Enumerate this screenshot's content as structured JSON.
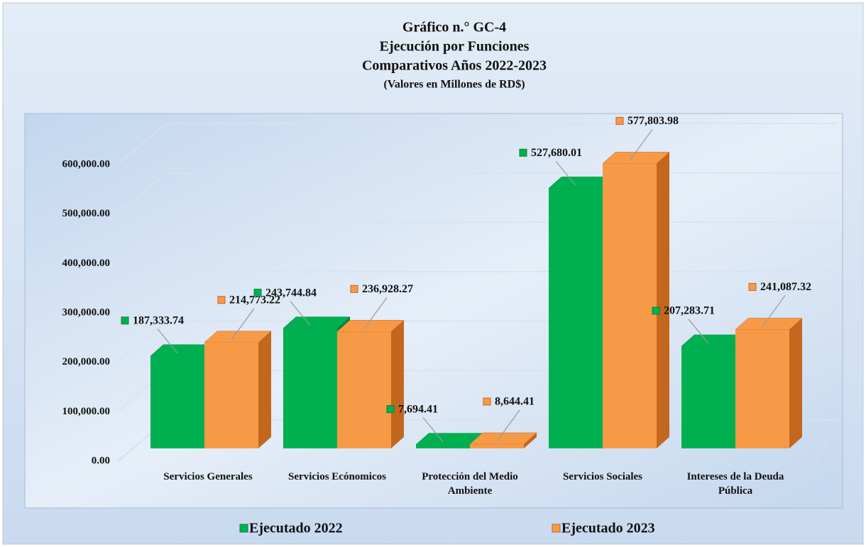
{
  "chart_data": {
    "type": "bar3d",
    "title": "Gráfico n.° GC-4",
    "subtitle": "Ejecución por Funciones",
    "subtitle_2": "Comparativos Años 2022-2023",
    "subtitle_3": "(Valores en Millones de RD$)",
    "categories": [
      "Servicios Generales",
      "Servicios Ecónomicos",
      "Protección del Medio Ambiente",
      "Servicios Sociales",
      "Intereses  de la Deuda Pública"
    ],
    "series": [
      {
        "name": "Ejecutado 2022",
        "color": "#00b050",
        "side_color": "#00883c",
        "values": [
          187333.74,
          243744.84,
          7694.41,
          527680.01,
          207283.71
        ],
        "value_labels": [
          "187,333.74",
          "243,744.84",
          "7,694.41",
          "527,680.01",
          "207,283.71"
        ]
      },
      {
        "name": "Ejecutado 2023",
        "color": "#f79a48",
        "side_color": "#c4671e",
        "values": [
          214773.22,
          236928.27,
          8644.41,
          577803.98,
          241087.32
        ],
        "value_labels": [
          "214,773.22",
          "236,928.27",
          "8,644.41",
          "577,803.98",
          "241,087.32"
        ]
      }
    ],
    "ylim": [
      0,
      600000
    ],
    "yticks": [
      {
        "value": 0,
        "label": "0.00"
      },
      {
        "value": 100000,
        "label": "100,000.00"
      },
      {
        "value": 200000,
        "label": "200,000.00"
      },
      {
        "value": 300000,
        "label": "300,000.00"
      },
      {
        "value": 400000,
        "label": "400,000.00"
      },
      {
        "value": 500000,
        "label": "500,000.00"
      },
      {
        "value": 600000,
        "label": "600,000.00"
      }
    ],
    "grid": true,
    "legend": "bottom"
  }
}
